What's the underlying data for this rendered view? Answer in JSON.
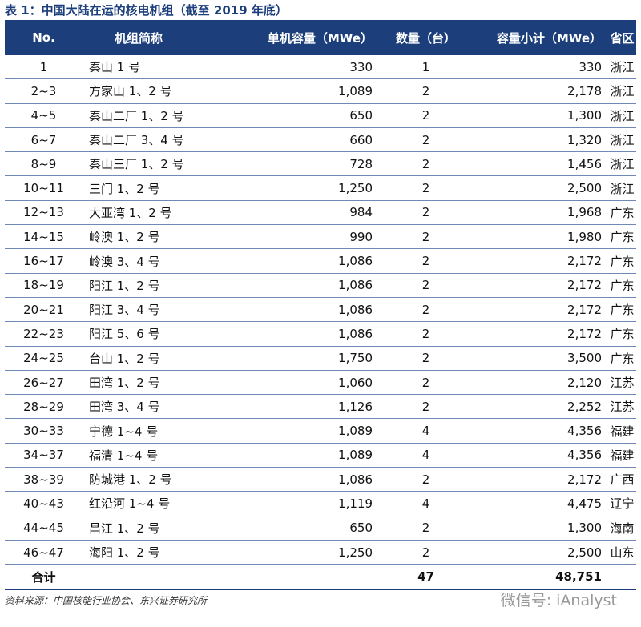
{
  "title": "表 1：中国大陆在运的核电机组（截至 2019 年底）",
  "table": {
    "header": [
      "No.",
      "机组简称",
      "单机容量（MWe）",
      "数量（台）",
      "容量小计（MWe）",
      "省区"
    ],
    "rows": [
      [
        "1",
        "秦山 1 号",
        "330",
        "1",
        "330",
        "浙江"
      ],
      [
        "2~3",
        "方家山 1、2 号",
        "1,089",
        "2",
        "2,178",
        "浙江"
      ],
      [
        "4~5",
        "秦山二厂 1、2 号",
        "650",
        "2",
        "1,300",
        "浙江"
      ],
      [
        "6~7",
        "秦山二厂 3、4 号",
        "660",
        "2",
        "1,320",
        "浙江"
      ],
      [
        "8~9",
        "秦山三厂 1、2 号",
        "728",
        "2",
        "1,456",
        "浙江"
      ],
      [
        "10~11",
        "三门 1、2 号",
        "1,250",
        "2",
        "2,500",
        "浙江"
      ],
      [
        "12~13",
        "大亚湾 1、2 号",
        "984",
        "2",
        "1,968",
        "广东"
      ],
      [
        "14~15",
        "岭澳 1、2 号",
        "990",
        "2",
        "1,980",
        "广东"
      ],
      [
        "16~17",
        "岭澳 3、4 号",
        "1,086",
        "2",
        "2,172",
        "广东"
      ],
      [
        "18~19",
        "阳江 1、2 号",
        "1,086",
        "2",
        "2,172",
        "广东"
      ],
      [
        "20~21",
        "阳江 3、4 号",
        "1,086",
        "2",
        "2,172",
        "广东"
      ],
      [
        "22~23",
        "阳江 5、6 号",
        "1,086",
        "2",
        "2,172",
        "广东"
      ],
      [
        "24~25",
        "台山 1、2 号",
        "1,750",
        "2",
        "3,500",
        "广东"
      ],
      [
        "26~27",
        "田湾 1、2 号",
        "1,060",
        "2",
        "2,120",
        "江苏"
      ],
      [
        "28~29",
        "田湾 3、4 号",
        "1,126",
        "2",
        "2,252",
        "江苏"
      ],
      [
        "30~33",
        "宁德 1~4 号",
        "1,089",
        "4",
        "4,356",
        "福建"
      ],
      [
        "34~37",
        "福清 1~4 号",
        "1,089",
        "4",
        "4,356",
        "福建"
      ],
      [
        "38~39",
        "防城港 1、2 号",
        "1,086",
        "2",
        "2,172",
        "广西"
      ],
      [
        "40~43",
        "红沿河 1~4 号",
        "1,119",
        "4",
        "4,475",
        "辽宁"
      ],
      [
        "44~45",
        "昌江 1、2 号",
        "650",
        "2",
        "1,300",
        "海南"
      ],
      [
        "46~47",
        "海阳 1、2 号",
        "1,250",
        "2",
        "2,500",
        "山东"
      ]
    ],
    "total": {
      "label": "合计",
      "count": "47",
      "capacity": "48,751"
    }
  },
  "source": "资料来源：中国核能行业协会、东兴证券研究所",
  "watermark": "微信号: iAnalyst"
}
